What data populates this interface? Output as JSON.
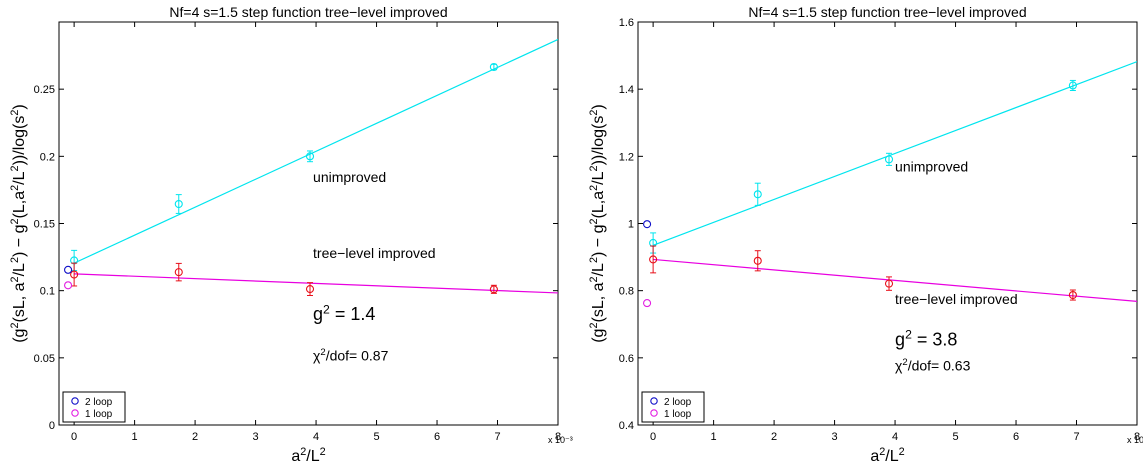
{
  "chart_data": [
    {
      "type": "scatter",
      "title": "Nf=4   s=1.5  step function tree−level improved",
      "xlabel": "a²/L²",
      "ylabel": "(g²(sL, a²/L²) − g²(L,a²/L²))/log(s²)",
      "x_multiplier": "x 10⁻³",
      "xlim": [
        -0.25,
        8
      ],
      "ylim": [
        0,
        0.3
      ],
      "xticks": [
        0,
        1,
        2,
        3,
        4,
        5,
        6,
        7,
        8
      ],
      "yticks": [
        0,
        0.05,
        0.1,
        0.15,
        0.2,
        0.25
      ],
      "ytick_labels": [
        "0",
        "0.05",
        "0.1",
        "0.15",
        "0.2",
        "0.25"
      ],
      "series": [
        {
          "color": "#00e5ee",
          "x": [
            0,
            1.73,
            3.9,
            6.94
          ],
          "y": [
            0.1225,
            0.1645,
            0.2,
            0.2665
          ],
          "err": [
            0.0075,
            0.007,
            0.004,
            0.002
          ],
          "fit": {
            "x0": 0,
            "y0": 0.1205,
            "x1": 8,
            "y1": 0.287
          }
        },
        {
          "color": "#e8101a",
          "fit_color": "#e800e0",
          "x": [
            0,
            1.73,
            3.9,
            6.94
          ],
          "y": [
            0.112,
            0.1138,
            0.1012,
            0.101
          ],
          "err": [
            0.0085,
            0.0065,
            0.0048,
            0.003
          ],
          "fit": {
            "x0": 0,
            "y0": 0.1125,
            "x1": 8,
            "y1": 0.0983
          }
        }
      ],
      "markers": [
        {
          "x": -0.1,
          "y": 0.1155,
          "color": "#1010c8"
        },
        {
          "x": -0.1,
          "y": 0.104,
          "color": "#e21ee2"
        }
      ],
      "annotations": [
        {
          "text": "unimproved",
          "x": 3.95,
          "y": 0.181
        },
        {
          "text": "tree−level improved",
          "x": 3.95,
          "y": 0.1245
        },
        {
          "base": "g",
          "sup": "2",
          "rest": " = 1.4",
          "x": 3.95,
          "y": 0.078,
          "size": 18
        },
        {
          "base": "χ",
          "sup": "2",
          "rest": "/dof= 0.87",
          "x": 3.95,
          "y": 0.048,
          "size": 14
        }
      ],
      "legend": {
        "position": "bottom-left",
        "entries": [
          {
            "label": "2 loop",
            "color": "#1010c8"
          },
          {
            "label": "1 loop",
            "color": "#e21ee2"
          }
        ]
      }
    },
    {
      "type": "scatter",
      "title": "Nf=4   s=1.5  step function tree−level improved",
      "xlabel": "a²/L²",
      "ylabel": "(g²(sL, a²/L²) − g²(L,a²/L²))/log(s²)",
      "x_multiplier": "x 10⁻³",
      "xlim": [
        -0.25,
        8
      ],
      "ylim": [
        0.4,
        1.6
      ],
      "xticks": [
        0,
        1,
        2,
        3,
        4,
        5,
        6,
        7,
        8
      ],
      "yticks": [
        0.4,
        0.6,
        0.8,
        1,
        1.2,
        1.4,
        1.6
      ],
      "ytick_labels": [
        "0.4",
        "0.6",
        "0.8",
        "1",
        "1.2",
        "1.4",
        "1.6"
      ],
      "series": [
        {
          "color": "#00e5ee",
          "x": [
            0,
            1.73,
            3.9,
            6.94
          ],
          "y": [
            0.942,
            1.087,
            1.191,
            1.411
          ],
          "err": [
            0.03,
            0.033,
            0.018,
            0.015
          ],
          "fit": {
            "x0": 0,
            "y0": 0.935,
            "x1": 8,
            "y1": 1.482
          }
        },
        {
          "color": "#e8101a",
          "fit_color": "#e800e0",
          "x": [
            0,
            1.73,
            3.9,
            6.94
          ],
          "y": [
            0.893,
            0.889,
            0.821,
            0.787
          ],
          "err": [
            0.04,
            0.03,
            0.02,
            0.015
          ],
          "fit": {
            "x0": 0,
            "y0": 0.893,
            "x1": 8,
            "y1": 0.768
          }
        }
      ],
      "markers": [
        {
          "x": -0.1,
          "y": 0.998,
          "color": "#1010c8"
        },
        {
          "x": -0.1,
          "y": 0.763,
          "color": "#e21ee2"
        }
      ],
      "annotations": [
        {
          "text": "unimproved",
          "x": 4.0,
          "y": 1.155
        },
        {
          "text": "tree−level improved",
          "x": 4.0,
          "y": 0.761
        },
        {
          "base": "g",
          "sup": "2",
          "rest": " = 3.8",
          "x": 4.0,
          "y": 0.637,
          "size": 18
        },
        {
          "base": "χ",
          "sup": "2",
          "rest": "/dof= 0.63",
          "x": 4.0,
          "y": 0.563,
          "size": 14
        }
      ],
      "legend": {
        "position": "bottom-left",
        "entries": [
          {
            "label": "2 loop",
            "color": "#1010c8"
          },
          {
            "label": "1 loop",
            "color": "#e21ee2"
          }
        ]
      }
    }
  ]
}
